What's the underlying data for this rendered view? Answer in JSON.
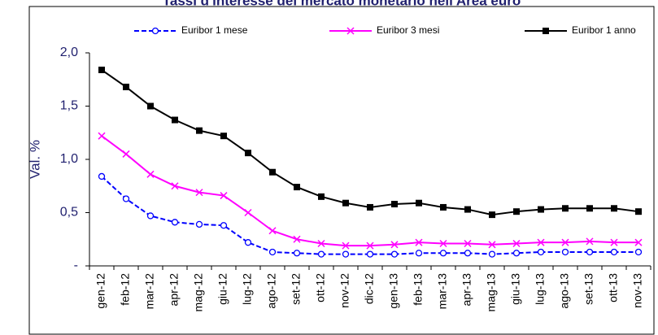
{
  "chart_data": {
    "type": "line",
    "title": "Tassi d'interesse del mercato monetario nell'Area euro",
    "ylabel": "Val. %",
    "categories": [
      "gen-12",
      "feb-12",
      "mar-12",
      "apr-12",
      "mag-12",
      "giu-12",
      "lug-12",
      "ago-12",
      "set-12",
      "ott-12",
      "nov-12",
      "dic-12",
      "gen-13",
      "feb-13",
      "mar-13",
      "apr-13",
      "mag-13",
      "giu-13",
      "lug-13",
      "ago-13",
      "set-13",
      "ott-13",
      "nov-13"
    ],
    "series": [
      {
        "name": "Euribor 1 mese",
        "color": "#0000ff",
        "marker": "circle",
        "line_style": "dashed",
        "values": [
          0.84,
          0.63,
          0.47,
          0.41,
          0.39,
          0.38,
          0.22,
          0.13,
          0.12,
          0.11,
          0.11,
          0.11,
          0.11,
          0.12,
          0.12,
          0.12,
          0.11,
          0.12,
          0.13,
          0.13,
          0.13,
          0.13,
          0.13
        ]
      },
      {
        "name": "Euribor 3 mesi",
        "color": "#ff00ff",
        "marker": "x",
        "line_style": "solid",
        "values": [
          1.22,
          1.05,
          0.86,
          0.75,
          0.69,
          0.66,
          0.5,
          0.33,
          0.25,
          0.21,
          0.19,
          0.19,
          0.2,
          0.22,
          0.21,
          0.21,
          0.2,
          0.21,
          0.22,
          0.22,
          0.23,
          0.22,
          0.22
        ]
      },
      {
        "name": "Euribor 1 anno",
        "color": "#000000",
        "marker": "square",
        "line_style": "solid",
        "values": [
          1.84,
          1.68,
          1.5,
          1.37,
          1.27,
          1.22,
          1.06,
          0.88,
          0.74,
          0.65,
          0.59,
          0.55,
          0.58,
          0.59,
          0.55,
          0.53,
          0.48,
          0.51,
          0.53,
          0.54,
          0.54,
          0.54,
          0.51
        ]
      }
    ],
    "ylim": [
      0,
      2
    ],
    "yticks": [
      {
        "value": 0,
        "label": "-"
      },
      {
        "value": 0.5,
        "label": "0,5"
      },
      {
        "value": 1,
        "label": "1,0"
      },
      {
        "value": 1.5,
        "label": "1,5"
      },
      {
        "value": 2,
        "label": "2,0"
      }
    ],
    "grid": false,
    "legend": "top"
  }
}
